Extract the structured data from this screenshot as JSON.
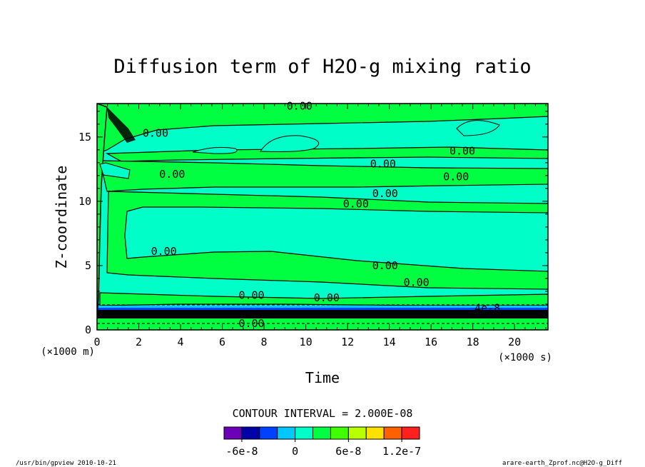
{
  "chart_data": {
    "type": "contour",
    "title": "Diffusion term of H2O-g mixing ratio",
    "xlabel": "Time",
    "ylabel": "Z-coordinate",
    "x_unit": "(×1000 s)",
    "y_unit": "(×1000 m)",
    "xlim": [
      0,
      21.6
    ],
    "ylim": [
      0,
      17.6
    ],
    "x_ticks": [
      0,
      2,
      4,
      6,
      8,
      10,
      12,
      14,
      16,
      18,
      20
    ],
    "x_tick_labels": [
      "0",
      "2",
      "4",
      "6",
      "8",
      "10",
      "12",
      "14",
      "16",
      "18",
      "20"
    ],
    "y_ticks": [
      0,
      5,
      10,
      15
    ],
    "y_tick_labels": [
      "0",
      "5",
      "10",
      "15"
    ],
    "contour_interval_text": "CONTOUR INTERVAL = 2.000E-08",
    "contour_labels": [
      {
        "text": "0.00",
        "x": 9.7,
        "y": 17.4
      },
      {
        "text": "0.00",
        "x": 2.8,
        "y": 15.3
      },
      {
        "text": "0.00",
        "x": 17.5,
        "y": 13.9
      },
      {
        "text": "0.00",
        "x": 3.6,
        "y": 12.1
      },
      {
        "text": "0.00",
        "x": 13.7,
        "y": 12.9
      },
      {
        "text": "0.00",
        "x": 17.2,
        "y": 11.9
      },
      {
        "text": "0.00",
        "x": 13.8,
        "y": 10.6
      },
      {
        "text": "0.00",
        "x": 12.4,
        "y": 9.8
      },
      {
        "text": "0.00",
        "x": 3.2,
        "y": 6.1
      },
      {
        "text": "0.00",
        "x": 13.8,
        "y": 5.0
      },
      {
        "text": "0.00",
        "x": 15.3,
        "y": 3.7
      },
      {
        "text": "0.00",
        "x": 7.4,
        "y": 2.7
      },
      {
        "text": "0.00",
        "x": 11.0,
        "y": 2.5
      },
      {
        "text": "0.00",
        "x": 7.4,
        "y": 0.5
      },
      {
        "text": "4e-8",
        "x": 18.7,
        "y": 1.7
      }
    ],
    "legend": {
      "boundaries": [
        -8e-08,
        -6e-08,
        -4e-08,
        -2e-08,
        0,
        2e-08,
        4e-08,
        6e-08,
        8e-08,
        1e-07,
        1.2e-07,
        1.4e-07
      ],
      "colors": [
        "#6b00b8",
        "#0000a8",
        "#0040ff",
        "#00c8ff",
        "#00ffc8",
        "#00ff40",
        "#40ff00",
        "#b8ff00",
        "#ffe000",
        "#ff6000",
        "#ff2020",
        "#ffa0a0"
      ],
      "tick_labels": [
        "-6e-8",
        "0",
        "6e-8",
        "1.2e-7"
      ],
      "tick_values": [
        -6e-08,
        0,
        6e-08,
        1.2e-07
      ]
    }
  },
  "footer": {
    "left": "/usr/bin/gpview  2010-10-21",
    "right": "arare-earth_Zprof.nc@H2O-g_Diff"
  },
  "colors": {
    "band_light": "#00ffc8",
    "band_green": "#00ff40",
    "band_cyan": "#00c8ff",
    "band_blue": "#0040ff",
    "band_dark": "#000000"
  }
}
